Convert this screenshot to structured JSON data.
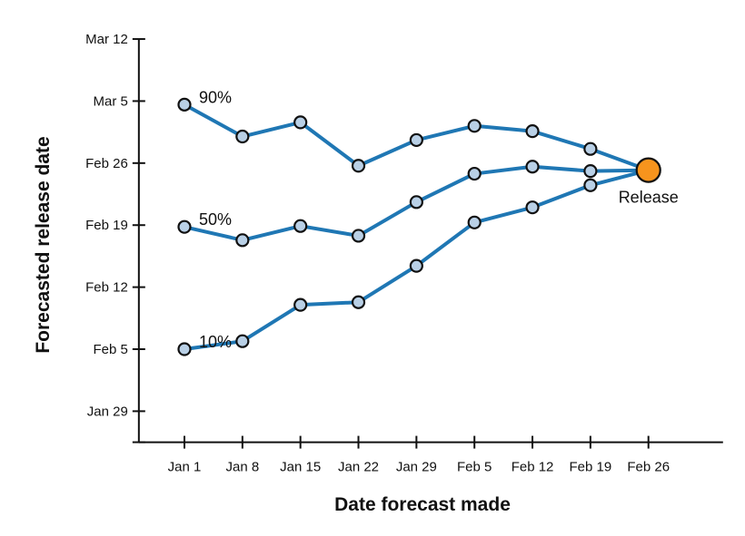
{
  "chart_data": {
    "type": "line",
    "xlabel": "Date forecast made",
    "ylabel": "Forecasted release date",
    "x_ticks": [
      {
        "day": 0,
        "label": "Jan 1"
      },
      {
        "day": 7,
        "label": "Jan 8"
      },
      {
        "day": 14,
        "label": "Jan 15"
      },
      {
        "day": 21,
        "label": "Jan 22"
      },
      {
        "day": 28,
        "label": "Jan 29"
      },
      {
        "day": 35,
        "label": "Feb 5"
      },
      {
        "day": 42,
        "label": "Feb 12"
      },
      {
        "day": 49,
        "label": "Feb 19"
      },
      {
        "day": 56,
        "label": "Feb 26"
      }
    ],
    "y_ticks": [
      {
        "day": 28,
        "label": "Jan 29"
      },
      {
        "day": 35,
        "label": "Feb 5"
      },
      {
        "day": 42,
        "label": "Feb 12"
      },
      {
        "day": 49,
        "label": "Feb 19"
      },
      {
        "day": 56,
        "label": "Feb 26"
      },
      {
        "day": 63,
        "label": "Mar 5"
      },
      {
        "day": 70,
        "label": "Mar 12"
      }
    ],
    "x_range_days": [
      -5.5,
      65
    ],
    "y_range_days": [
      24.5,
      70
    ],
    "x": [
      0,
      7,
      14,
      21,
      28,
      35,
      42,
      49
    ],
    "series": [
      {
        "name": "90%",
        "values": [
          62.6,
          59.0,
          60.6,
          55.7,
          58.6,
          60.2,
          59.6,
          57.6
        ]
      },
      {
        "name": "50%",
        "values": [
          48.8,
          47.3,
          48.9,
          47.8,
          51.6,
          54.8,
          55.6,
          55.1
        ]
      },
      {
        "name": "10%",
        "values": [
          35.0,
          35.9,
          40.0,
          40.3,
          44.4,
          49.3,
          51.0,
          53.5
        ]
      }
    ],
    "release": {
      "label": "Release",
      "x": 56,
      "y": 55.2
    },
    "colors": {
      "line": "#1f77b4",
      "marker_fill": "#b9d0e6",
      "marker_stroke": "#111111",
      "release_fill": "#f7941d"
    },
    "grid": false
  }
}
